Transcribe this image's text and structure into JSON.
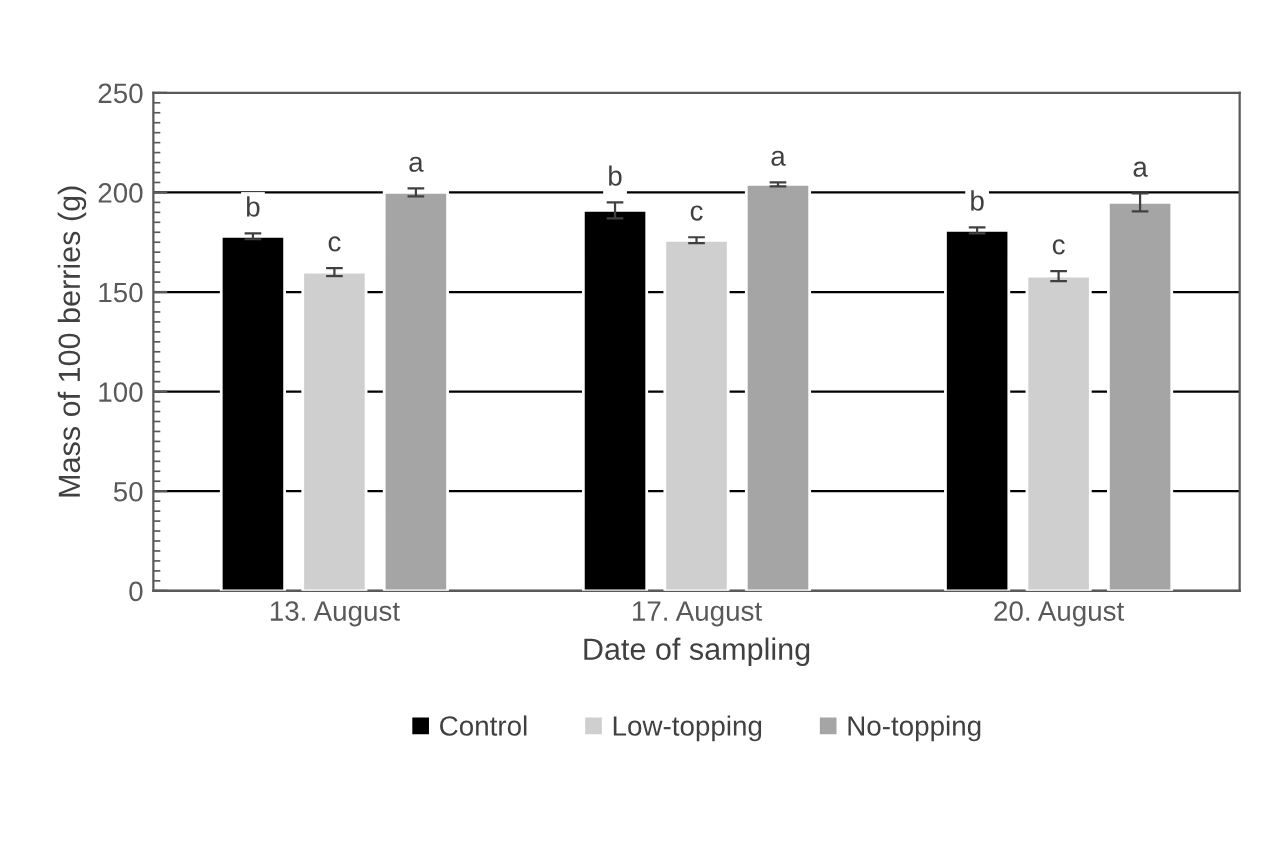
{
  "chart_data": {
    "type": "bar",
    "xlabel": "Date of sampling",
    "ylabel": "Mass of 100 berries (g)",
    "categories": [
      "13. August",
      "17. August",
      "20. August"
    ],
    "series": [
      {
        "name": "Control",
        "color": "#000000",
        "values": [
          178,
          191,
          181
        ],
        "errors": [
          1.5,
          4,
          1.5
        ],
        "value_labels": [
          "b",
          "b",
          "b"
        ]
      },
      {
        "name": "Low-topping",
        "color": "#d0cfd0",
        "values": [
          160,
          176,
          158
        ],
        "errors": [
          2,
          1.5,
          2.5
        ],
        "value_labels": [
          "c",
          "c",
          "c"
        ]
      },
      {
        "name": "No-topping",
        "color": "#a5a5a5",
        "values": [
          200,
          204,
          195
        ],
        "errors": [
          2,
          1,
          4.5
        ],
        "value_labels": [
          "a",
          "a",
          "a"
        ]
      }
    ],
    "ylim": [
      0,
      250
    ],
    "yticks": [
      0,
      50,
      100,
      150,
      200,
      250
    ],
    "grid": "y",
    "legend": "bottom"
  }
}
